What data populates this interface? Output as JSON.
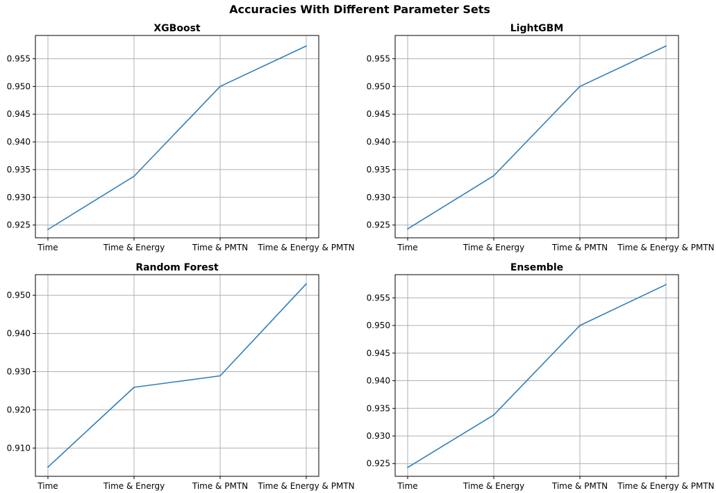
{
  "figure": {
    "title": "Accuracies With Different Parameter Sets",
    "line_color": "#2e7ebc"
  },
  "chart_data": [
    {
      "type": "line",
      "title": "XGBoost",
      "categories": [
        "Time",
        "Time & Energy",
        "Time & PMTN",
        "Time & Energy & PMTN"
      ],
      "values": [
        0.9242,
        0.9338,
        0.95,
        0.9573
      ],
      "ylim": [
        0.9227,
        0.9592
      ],
      "yticks": [
        "0.925",
        "0.930",
        "0.935",
        "0.940",
        "0.945",
        "0.950",
        "0.955"
      ],
      "xlabel": "",
      "ylabel": "",
      "grid": true
    },
    {
      "type": "line",
      "title": "LightGBM",
      "categories": [
        "Time",
        "Time & Energy",
        "Time & PMTN",
        "Time & Energy & PMTN"
      ],
      "values": [
        0.9243,
        0.9339,
        0.95,
        0.9573
      ],
      "ylim": [
        0.9227,
        0.9592
      ],
      "yticks": [
        "0.925",
        "0.930",
        "0.935",
        "0.940",
        "0.945",
        "0.950",
        "0.955"
      ],
      "xlabel": "",
      "ylabel": "",
      "grid": true
    },
    {
      "type": "line",
      "title": "Random Forest",
      "categories": [
        "Time",
        "Time & Energy",
        "Time & PMTN",
        "Time & Energy & PMTN"
      ],
      "values": [
        0.905,
        0.9259,
        0.9289,
        0.953
      ],
      "ylim": [
        0.9026,
        0.9554
      ],
      "yticks": [
        "0.910",
        "0.920",
        "0.930",
        "0.940",
        "0.950"
      ],
      "xlabel": "",
      "ylabel": "",
      "grid": true
    },
    {
      "type": "line",
      "title": "Ensemble",
      "categories": [
        "Time",
        "Time & Energy",
        "Time & PMTN",
        "Time & Energy & PMTN"
      ],
      "values": [
        0.9243,
        0.9338,
        0.95,
        0.9574
      ],
      "ylim": [
        0.9227,
        0.9592
      ],
      "yticks": [
        "0.925",
        "0.930",
        "0.935",
        "0.940",
        "0.945",
        "0.950",
        "0.955"
      ],
      "xlabel": "",
      "ylabel": "",
      "grid": true
    }
  ]
}
